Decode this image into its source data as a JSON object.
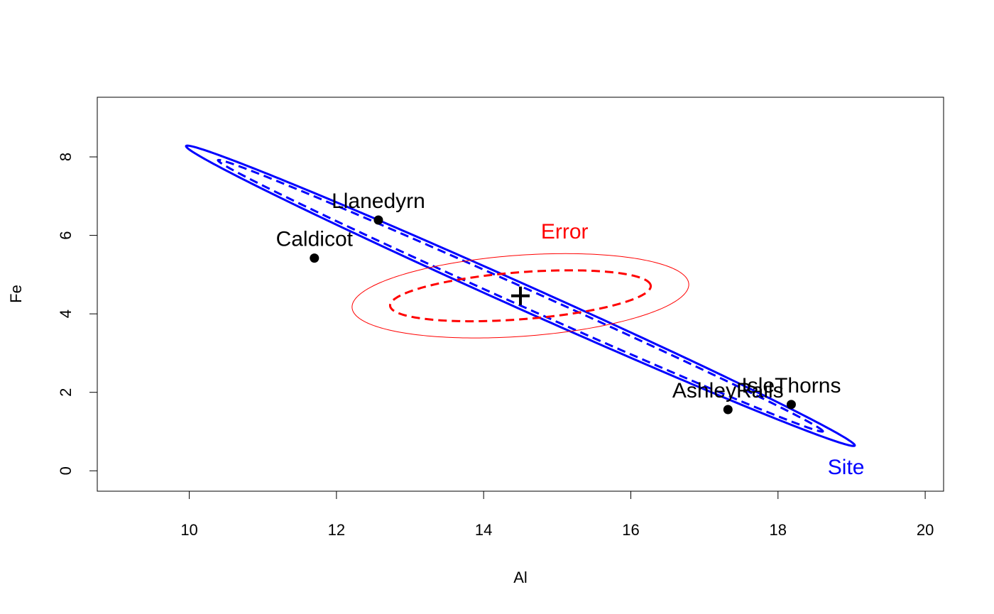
{
  "chart_data": {
    "type": "scatter",
    "xlabel": "Al",
    "ylabel": "Fe",
    "xlim": [
      8.75,
      20.25
    ],
    "ylim": [
      -0.52,
      9.52
    ],
    "x_ticks": [
      10,
      12,
      14,
      16,
      18,
      20
    ],
    "y_ticks": [
      0,
      2,
      4,
      6,
      8
    ],
    "grid": false,
    "points": [
      {
        "label": "Caldicot",
        "x": 11.7,
        "y": 5.42
      },
      {
        "label": "Llanedyrn",
        "x": 12.57,
        "y": 6.39
      },
      {
        "label": "AshleyRails",
        "x": 17.32,
        "y": 1.56
      },
      {
        "label": "IsleThorns",
        "x": 18.18,
        "y": 1.69
      }
    ],
    "grand_mean": {
      "x": 14.5,
      "y": 4.46,
      "marker": "+"
    },
    "ellipses": [
      {
        "label": "Site",
        "color": "#0000ff",
        "style": "solid",
        "center": [
          14.5,
          4.46
        ],
        "a": 5.935,
        "b": 0.262,
        "angle_deg": -40.09
      },
      {
        "label": "",
        "color": "#0000ff",
        "style": "dashed",
        "center": [
          14.5,
          4.46
        ],
        "a": 5.37,
        "b": 0.19,
        "angle_deg": -40.09
      },
      {
        "label": "Error",
        "color": "#ff0000",
        "style": "solid",
        "center": [
          14.5,
          4.46
        ],
        "a": 2.31,
        "b": 1.026,
        "angle_deg": 8.9
      },
      {
        "label": "",
        "color": "#ff0000",
        "style": "dashed",
        "center": [
          14.5,
          4.46
        ],
        "a": 1.79,
        "b": 0.594,
        "angle_deg": 8.9
      }
    ]
  }
}
